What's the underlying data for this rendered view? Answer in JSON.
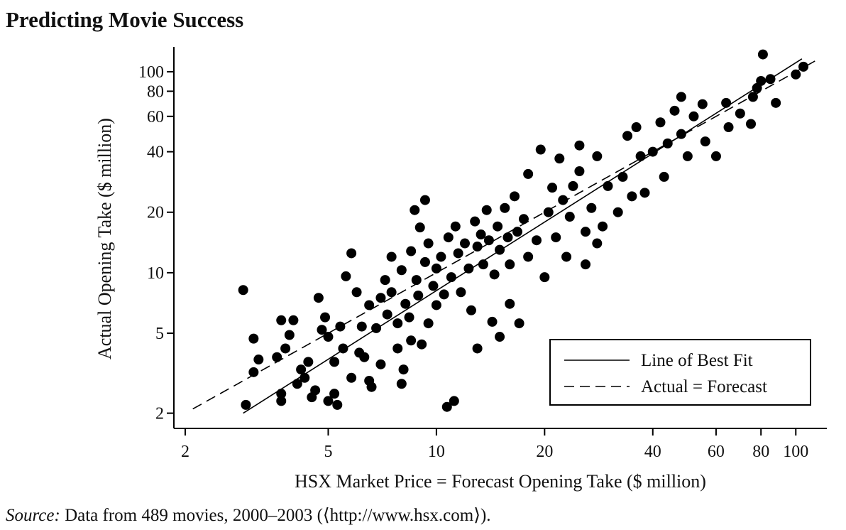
{
  "chart_data": {
    "type": "scatter",
    "title": "Predicting Movie Success",
    "xlabel": "HSX Market Price = Forecast Opening Take ($ million)",
    "ylabel": "Actual Opening Take ($ million)",
    "source_label": "Source:",
    "source_text": "Data from 489 movies, 2000–2003 (⟨http://www.hsx.com⟩).",
    "xscale": "log",
    "yscale": "log",
    "xlim": [
      1.86,
      122
    ],
    "ylim": [
      1.68,
      133
    ],
    "xticks": [
      2,
      5,
      10,
      20,
      40,
      60,
      80,
      100
    ],
    "yticks": [
      2,
      5,
      10,
      20,
      40,
      60,
      80,
      100
    ],
    "legend": "lower right",
    "series": [
      {
        "color": "#000000",
        "x": [
          2.9,
          2.95,
          3.1,
          3.1,
          3.2,
          3.6,
          3.7,
          3.8,
          3.9,
          4.0,
          3.7,
          3.7,
          4.1,
          4.2,
          4.3,
          4.4,
          4.5,
          4.6,
          4.7,
          4.8,
          4.9,
          5.0,
          5.0,
          5.2,
          5.3,
          5.2,
          5.4,
          5.5,
          5.6,
          5.8,
          5.8,
          6.0,
          6.1,
          6.2,
          6.3,
          6.5,
          6.6,
          6.5,
          6.8,
          7.0,
          7.0,
          7.2,
          7.3,
          7.5,
          7.5,
          7.8,
          7.8,
          8.0,
          8.0,
          8.1,
          8.2,
          8.4,
          8.5,
          8.5,
          8.7,
          8.8,
          8.9,
          9.0,
          9.1,
          9.3,
          9.3,
          9.5,
          9.5,
          9.8,
          10,
          10,
          10.3,
          10.5,
          10.7,
          10.8,
          11,
          11.2,
          11.3,
          11.5,
          11.7,
          12,
          12.3,
          12.5,
          12.8,
          13,
          13,
          13.3,
          13.5,
          13.8,
          14,
          14.3,
          14.5,
          14.8,
          15,
          15,
          15.5,
          15.8,
          16,
          16,
          16.5,
          16.8,
          17,
          17.5,
          18,
          18,
          19,
          19.5,
          20,
          20.5,
          21,
          21.5,
          22,
          22.5,
          23,
          23.5,
          24,
          25,
          25,
          26,
          26,
          27,
          28,
          28,
          29,
          30,
          32,
          33,
          34,
          35,
          36,
          37,
          38,
          40,
          42,
          43,
          44,
          46,
          48,
          48,
          50,
          52,
          55,
          56,
          60,
          64,
          65,
          70,
          75,
          76,
          78,
          80,
          81,
          85,
          88,
          100,
          105
        ],
        "y": [
          8.2,
          2.2,
          4.7,
          3.2,
          3.7,
          3.8,
          5.8,
          4.2,
          4.9,
          5.8,
          2.3,
          2.5,
          2.8,
          3.3,
          3.0,
          3.6,
          2.4,
          2.6,
          7.5,
          5.2,
          6.0,
          4.8,
          2.3,
          2.5,
          2.2,
          3.6,
          5.4,
          4.2,
          9.6,
          12.5,
          3.0,
          8.0,
          4.0,
          5.4,
          3.8,
          2.9,
          2.7,
          6.9,
          5.3,
          7.5,
          3.5,
          9.2,
          6.2,
          12,
          8.0,
          4.2,
          5.6,
          2.8,
          10.3,
          3.3,
          7.0,
          6.0,
          12.8,
          4.6,
          20.5,
          9.2,
          7.7,
          16.8,
          4.4,
          11.3,
          23,
          5.6,
          14,
          8.6,
          10.5,
          6.9,
          12,
          7.8,
          2.15,
          15,
          9.5,
          2.3,
          17,
          12.5,
          8.0,
          14,
          10.5,
          6.5,
          18,
          4.2,
          13.5,
          15.5,
          11,
          20.5,
          14.5,
          5.7,
          9.8,
          17,
          13,
          4.8,
          21,
          15,
          7,
          11,
          24,
          16,
          5.6,
          18.5,
          12,
          31,
          14.5,
          41,
          9.5,
          20,
          26.5,
          15,
          37,
          23,
          12,
          19,
          27,
          43,
          32,
          11,
          16,
          21,
          38,
          14,
          17,
          27,
          20,
          30,
          48,
          24,
          53,
          38,
          25,
          40,
          56,
          30,
          44,
          64,
          49,
          75,
          38,
          60,
          69,
          45,
          38,
          70,
          53,
          62,
          55,
          75,
          83,
          90,
          122,
          92,
          70,
          97,
          106
        ]
      }
    ],
    "lines": [
      {
        "name": "Line of Best Fit",
        "style": "solid",
        "x": [
          2.9,
          104
        ],
        "y": [
          2.0,
          116
        ]
      },
      {
        "name": "Actual = Forecast",
        "style": "dashed",
        "x": [
          2.1,
          114
        ],
        "y": [
          2.1,
          114
        ]
      }
    ]
  }
}
